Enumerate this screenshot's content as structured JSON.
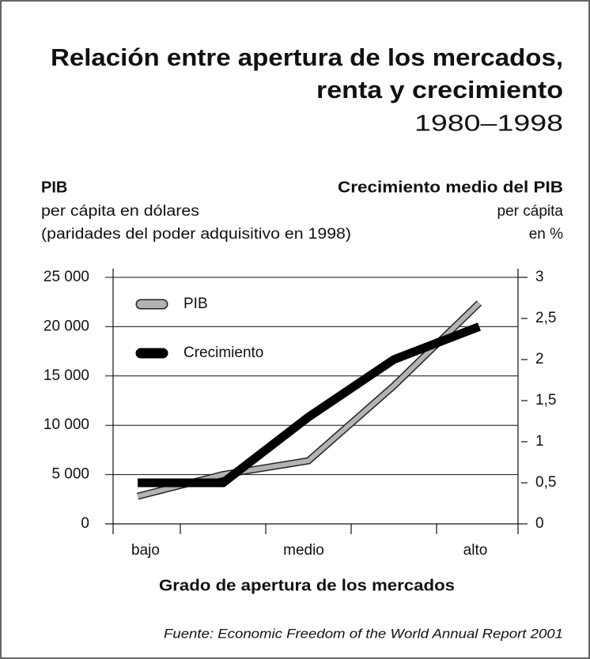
{
  "chart_data": {
    "type": "line",
    "title": "Relación entre apertura de los mercados,",
    "title_line2": "renta y crecimiento",
    "subtitle": "1980–1998",
    "y_label": "PIB",
    "y_sublabel": [
      "per cápita en dólares",
      "(paridades del poder adquisitivo en 1998)"
    ],
    "y2_label": "Crecimiento medio del PIB",
    "y2_sublabel": [
      "per cápita",
      "en %"
    ],
    "x_label": "Grado de apertura de los mercados",
    "source": "Fuente: Economic Freedom of the World Annual Report 2001",
    "categories": [
      "bajo",
      null,
      "medio",
      null,
      "alto"
    ],
    "series": [
      {
        "name": "PIB",
        "color": "#b3b3b3",
        "values": [
          2800,
          5000,
          6400,
          14000,
          22400
        ]
      },
      {
        "name": "Crecimiento",
        "color": "#000000",
        "axis": "y2",
        "values": [
          0.5,
          0.5,
          1.3,
          2.0,
          2.4
        ]
      }
    ],
    "ylim": [
      0,
      25000
    ],
    "yticks": [
      {
        "value": 0,
        "label": "0"
      },
      {
        "value": 5000,
        "label": "5 000"
      },
      {
        "value": 10000,
        "label": "10 000"
      },
      {
        "value": 15000,
        "label": "15 000"
      },
      {
        "value": 20000,
        "label": "20 000"
      },
      {
        "value": 25000,
        "label": "25 000"
      }
    ],
    "y2lim": [
      0,
      3
    ],
    "y2ticks": [
      0,
      {
        "value": 0.5,
        "label": "0,5"
      },
      1,
      {
        "value": 1.5,
        "label": "1,5"
      },
      2,
      {
        "value": 2.5,
        "label": "2,5"
      },
      3
    ],
    "grid": true,
    "legend": "upper left"
  }
}
